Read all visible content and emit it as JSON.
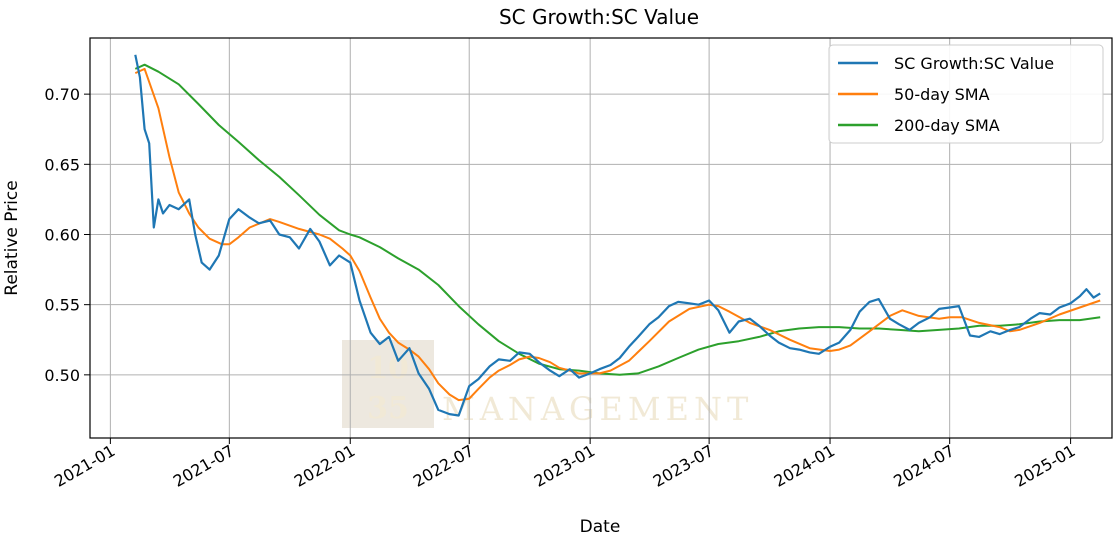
{
  "chart_data": {
    "type": "line",
    "title": "SC Growth:SC Value",
    "xlabel": "Date",
    "ylabel": "Relative Price",
    "x_ticks": [
      "2021-01",
      "2021-07",
      "2022-01",
      "2022-07",
      "2023-01",
      "2023-07",
      "2024-01",
      "2024-07",
      "2025-01"
    ],
    "y_ticks": [
      "0.50",
      "0.55",
      "0.60",
      "0.65",
      "0.70"
    ],
    "xlim": [
      "2020-12-01",
      "2025-03-05"
    ],
    "ylim": [
      0.455,
      0.74
    ],
    "grid": true,
    "legend_position": "top-right",
    "watermark": [
      "10",
      "35",
      "MANAGEMENT"
    ],
    "series": [
      {
        "name": "SC Growth:SC Value",
        "color": "#1f77b4",
        "points": [
          [
            "2021-02-08",
            0.728
          ],
          [
            "2021-02-15",
            0.712
          ],
          [
            "2021-02-22",
            0.675
          ],
          [
            "2021-03-01",
            0.665
          ],
          [
            "2021-03-08",
            0.605
          ],
          [
            "2021-03-15",
            0.625
          ],
          [
            "2021-03-22",
            0.615
          ],
          [
            "2021-04-01",
            0.621
          ],
          [
            "2021-04-15",
            0.618
          ],
          [
            "2021-05-01",
            0.625
          ],
          [
            "2021-05-10",
            0.6
          ],
          [
            "2021-05-20",
            0.58
          ],
          [
            "2021-06-01",
            0.575
          ],
          [
            "2021-06-15",
            0.585
          ],
          [
            "2021-07-01",
            0.611
          ],
          [
            "2021-07-15",
            0.618
          ],
          [
            "2021-08-01",
            0.612
          ],
          [
            "2021-08-15",
            0.608
          ],
          [
            "2021-09-01",
            0.61
          ],
          [
            "2021-09-15",
            0.6
          ],
          [
            "2021-10-01",
            0.598
          ],
          [
            "2021-10-15",
            0.59
          ],
          [
            "2021-11-01",
            0.604
          ],
          [
            "2021-11-15",
            0.595
          ],
          [
            "2021-12-01",
            0.578
          ],
          [
            "2021-12-15",
            0.585
          ],
          [
            "2022-01-01",
            0.58
          ],
          [
            "2022-01-15",
            0.553
          ],
          [
            "2022-02-01",
            0.53
          ],
          [
            "2022-02-15",
            0.522
          ],
          [
            "2022-03-01",
            0.527
          ],
          [
            "2022-03-15",
            0.51
          ],
          [
            "2022-04-01",
            0.519
          ],
          [
            "2022-04-15",
            0.501
          ],
          [
            "2022-05-01",
            0.49
          ],
          [
            "2022-05-15",
            0.475
          ],
          [
            "2022-06-01",
            0.472
          ],
          [
            "2022-06-15",
            0.471
          ],
          [
            "2022-07-01",
            0.492
          ],
          [
            "2022-07-15",
            0.497
          ],
          [
            "2022-08-01",
            0.506
          ],
          [
            "2022-08-15",
            0.511
          ],
          [
            "2022-09-01",
            0.51
          ],
          [
            "2022-09-15",
            0.516
          ],
          [
            "2022-10-01",
            0.515
          ],
          [
            "2022-10-15",
            0.509
          ],
          [
            "2022-11-01",
            0.503
          ],
          [
            "2022-11-15",
            0.499
          ],
          [
            "2022-12-01",
            0.504
          ],
          [
            "2022-12-15",
            0.498
          ],
          [
            "2023-01-01",
            0.501
          ],
          [
            "2023-01-15",
            0.504
          ],
          [
            "2023-02-01",
            0.507
          ],
          [
            "2023-02-15",
            0.512
          ],
          [
            "2023-03-01",
            0.52
          ],
          [
            "2023-03-15",
            0.527
          ],
          [
            "2023-04-01",
            0.536
          ],
          [
            "2023-04-15",
            0.541
          ],
          [
            "2023-05-01",
            0.549
          ],
          [
            "2023-05-15",
            0.552
          ],
          [
            "2023-06-01",
            0.551
          ],
          [
            "2023-06-15",
            0.55
          ],
          [
            "2023-07-01",
            0.553
          ],
          [
            "2023-07-15",
            0.546
          ],
          [
            "2023-08-01",
            0.53
          ],
          [
            "2023-08-15",
            0.538
          ],
          [
            "2023-09-01",
            0.54
          ],
          [
            "2023-09-15",
            0.535
          ],
          [
            "2023-10-01",
            0.528
          ],
          [
            "2023-10-15",
            0.523
          ],
          [
            "2023-11-01",
            0.519
          ],
          [
            "2023-11-15",
            0.518
          ],
          [
            "2023-12-01",
            0.516
          ],
          [
            "2023-12-15",
            0.515
          ],
          [
            "2024-01-01",
            0.52
          ],
          [
            "2024-01-15",
            0.523
          ],
          [
            "2024-02-01",
            0.532
          ],
          [
            "2024-02-15",
            0.545
          ],
          [
            "2024-03-01",
            0.552
          ],
          [
            "2024-03-15",
            0.554
          ],
          [
            "2024-04-01",
            0.54
          ],
          [
            "2024-04-15",
            0.536
          ],
          [
            "2024-05-01",
            0.532
          ],
          [
            "2024-05-15",
            0.537
          ],
          [
            "2024-06-01",
            0.541
          ],
          [
            "2024-06-15",
            0.547
          ],
          [
            "2024-07-01",
            0.548
          ],
          [
            "2024-07-15",
            0.549
          ],
          [
            "2024-08-01",
            0.528
          ],
          [
            "2024-08-15",
            0.527
          ],
          [
            "2024-09-01",
            0.531
          ],
          [
            "2024-09-15",
            0.529
          ],
          [
            "2024-10-01",
            0.532
          ],
          [
            "2024-10-15",
            0.534
          ],
          [
            "2024-11-01",
            0.54
          ],
          [
            "2024-11-15",
            0.544
          ],
          [
            "2024-12-01",
            0.543
          ],
          [
            "2024-12-15",
            0.548
          ],
          [
            "2025-01-01",
            0.551
          ],
          [
            "2025-01-15",
            0.556
          ],
          [
            "2025-01-25",
            0.561
          ],
          [
            "2025-02-05",
            0.555
          ],
          [
            "2025-02-15",
            0.558
          ]
        ]
      },
      {
        "name": "50-day SMA",
        "color": "#ff7f0e",
        "points": [
          [
            "2021-02-08",
            0.715
          ],
          [
            "2021-02-22",
            0.718
          ],
          [
            "2021-03-15",
            0.69
          ],
          [
            "2021-04-01",
            0.655
          ],
          [
            "2021-04-15",
            0.63
          ],
          [
            "2021-05-01",
            0.615
          ],
          [
            "2021-05-15",
            0.605
          ],
          [
            "2021-06-01",
            0.597
          ],
          [
            "2021-06-20",
            0.593
          ],
          [
            "2021-07-01",
            0.593
          ],
          [
            "2021-07-15",
            0.598
          ],
          [
            "2021-08-01",
            0.605
          ],
          [
            "2021-09-01",
            0.611
          ],
          [
            "2021-09-15",
            0.609
          ],
          [
            "2021-10-15",
            0.604
          ],
          [
            "2021-11-15",
            0.6
          ],
          [
            "2021-12-01",
            0.597
          ],
          [
            "2021-12-20",
            0.59
          ],
          [
            "2022-01-01",
            0.585
          ],
          [
            "2022-01-15",
            0.574
          ],
          [
            "2022-02-01",
            0.555
          ],
          [
            "2022-02-15",
            0.54
          ],
          [
            "2022-03-01",
            0.53
          ],
          [
            "2022-03-15",
            0.523
          ],
          [
            "2022-04-01",
            0.518
          ],
          [
            "2022-04-15",
            0.513
          ],
          [
            "2022-05-01",
            0.504
          ],
          [
            "2022-05-15",
            0.494
          ],
          [
            "2022-06-01",
            0.486
          ],
          [
            "2022-06-15",
            0.482
          ],
          [
            "2022-07-01",
            0.483
          ],
          [
            "2022-07-15",
            0.49
          ],
          [
            "2022-08-01",
            0.498
          ],
          [
            "2022-08-15",
            0.503
          ],
          [
            "2022-09-01",
            0.507
          ],
          [
            "2022-09-15",
            0.511
          ],
          [
            "2022-10-01",
            0.513
          ],
          [
            "2022-10-15",
            0.512
          ],
          [
            "2022-11-01",
            0.509
          ],
          [
            "2022-11-15",
            0.505
          ],
          [
            "2022-12-01",
            0.503
          ],
          [
            "2022-12-15",
            0.501
          ],
          [
            "2023-01-01",
            0.501
          ],
          [
            "2023-01-15",
            0.501
          ],
          [
            "2023-02-01",
            0.503
          ],
          [
            "2023-03-01",
            0.51
          ],
          [
            "2023-04-01",
            0.524
          ],
          [
            "2023-05-01",
            0.538
          ],
          [
            "2023-06-01",
            0.547
          ],
          [
            "2023-07-01",
            0.55
          ],
          [
            "2023-07-15",
            0.549
          ],
          [
            "2023-08-01",
            0.545
          ],
          [
            "2023-09-01",
            0.537
          ],
          [
            "2023-10-01",
            0.532
          ],
          [
            "2023-11-01",
            0.525
          ],
          [
            "2023-12-01",
            0.519
          ],
          [
            "2024-01-01",
            0.517
          ],
          [
            "2024-01-15",
            0.518
          ],
          [
            "2024-02-01",
            0.521
          ],
          [
            "2024-03-01",
            0.531
          ],
          [
            "2024-04-01",
            0.542
          ],
          [
            "2024-04-20",
            0.546
          ],
          [
            "2024-05-15",
            0.542
          ],
          [
            "2024-06-15",
            0.54
          ],
          [
            "2024-07-01",
            0.541
          ],
          [
            "2024-07-20",
            0.541
          ],
          [
            "2024-08-15",
            0.537
          ],
          [
            "2024-09-15",
            0.534
          ],
          [
            "2024-10-01",
            0.531
          ],
          [
            "2024-10-15",
            0.532
          ],
          [
            "2024-11-15",
            0.537
          ],
          [
            "2024-12-15",
            0.543
          ],
          [
            "2025-01-15",
            0.548
          ],
          [
            "2025-02-15",
            0.553
          ]
        ]
      },
      {
        "name": "200-day SMA",
        "color": "#2ca02c",
        "points": [
          [
            "2021-02-08",
            0.718
          ],
          [
            "2021-02-22",
            0.721
          ],
          [
            "2021-03-15",
            0.716
          ],
          [
            "2021-04-15",
            0.707
          ],
          [
            "2021-05-15",
            0.693
          ],
          [
            "2021-06-15",
            0.678
          ],
          [
            "2021-07-15",
            0.666
          ],
          [
            "2021-08-15",
            0.653
          ],
          [
            "2021-09-15",
            0.641
          ],
          [
            "2021-10-15",
            0.628
          ],
          [
            "2021-11-15",
            0.614
          ],
          [
            "2021-12-15",
            0.603
          ],
          [
            "2022-01-01",
            0.6
          ],
          [
            "2022-01-15",
            0.598
          ],
          [
            "2022-02-15",
            0.591
          ],
          [
            "2022-03-15",
            0.583
          ],
          [
            "2022-04-15",
            0.575
          ],
          [
            "2022-05-15",
            0.564
          ],
          [
            "2022-06-15",
            0.549
          ],
          [
            "2022-07-15",
            0.536
          ],
          [
            "2022-08-15",
            0.524
          ],
          [
            "2022-09-15",
            0.515
          ],
          [
            "2022-10-15",
            0.508
          ],
          [
            "2022-11-15",
            0.504
          ],
          [
            "2022-12-15",
            0.503
          ],
          [
            "2023-01-15",
            0.501
          ],
          [
            "2023-02-15",
            0.5
          ],
          [
            "2023-03-15",
            0.501
          ],
          [
            "2023-04-15",
            0.506
          ],
          [
            "2023-05-15",
            0.512
          ],
          [
            "2023-06-15",
            0.518
          ],
          [
            "2023-07-15",
            0.522
          ],
          [
            "2023-08-15",
            0.524
          ],
          [
            "2023-09-15",
            0.527
          ],
          [
            "2023-10-15",
            0.531
          ],
          [
            "2023-11-15",
            0.533
          ],
          [
            "2023-12-15",
            0.534
          ],
          [
            "2024-01-15",
            0.534
          ],
          [
            "2024-02-15",
            0.533
          ],
          [
            "2024-03-15",
            0.533
          ],
          [
            "2024-04-15",
            0.532
          ],
          [
            "2024-05-15",
            0.531
          ],
          [
            "2024-06-15",
            0.532
          ],
          [
            "2024-07-15",
            0.533
          ],
          [
            "2024-08-15",
            0.535
          ],
          [
            "2024-09-15",
            0.535
          ],
          [
            "2024-10-15",
            0.536
          ],
          [
            "2024-11-15",
            0.538
          ],
          [
            "2024-12-15",
            0.539
          ],
          [
            "2025-01-15",
            0.539
          ],
          [
            "2025-02-15",
            0.541
          ]
        ]
      }
    ]
  }
}
